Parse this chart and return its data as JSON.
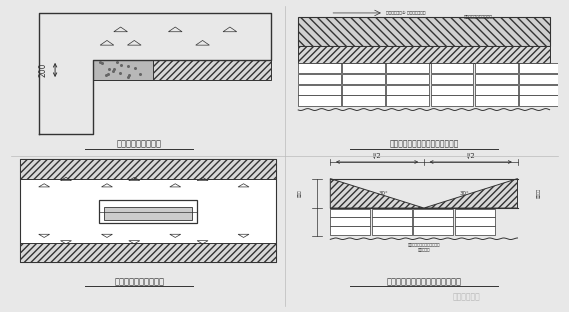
{
  "bg_color": "#e8e8e8",
  "panel_bg": "#ffffff",
  "line_color": "#333333",
  "title1": "斜砌端部预制三角砖块",
  "title2": "斜砌中部预制三角砖块（方法一）",
  "title3": "斜砌管线部位的节点",
  "title4": "斜砌中部预制三角砖块（方法二）",
  "watermark": "鸿工工程管理",
  "annotation_top_right1": "中间采用真姬② 块成品三角砖块",
  "annotation_top_right2": "构筑范围上下墙面和楼底",
  "dim_200": "200",
  "dim_l2_1": "l/2",
  "dim_l2_2": "l/2",
  "angle1": "30°",
  "angle2": "30°",
  "label_left": "楔形砖",
  "label_right": "普通三砖",
  "note1": "根据利用墙体砖块以上最后的",
  "note2": "做砖大样图"
}
